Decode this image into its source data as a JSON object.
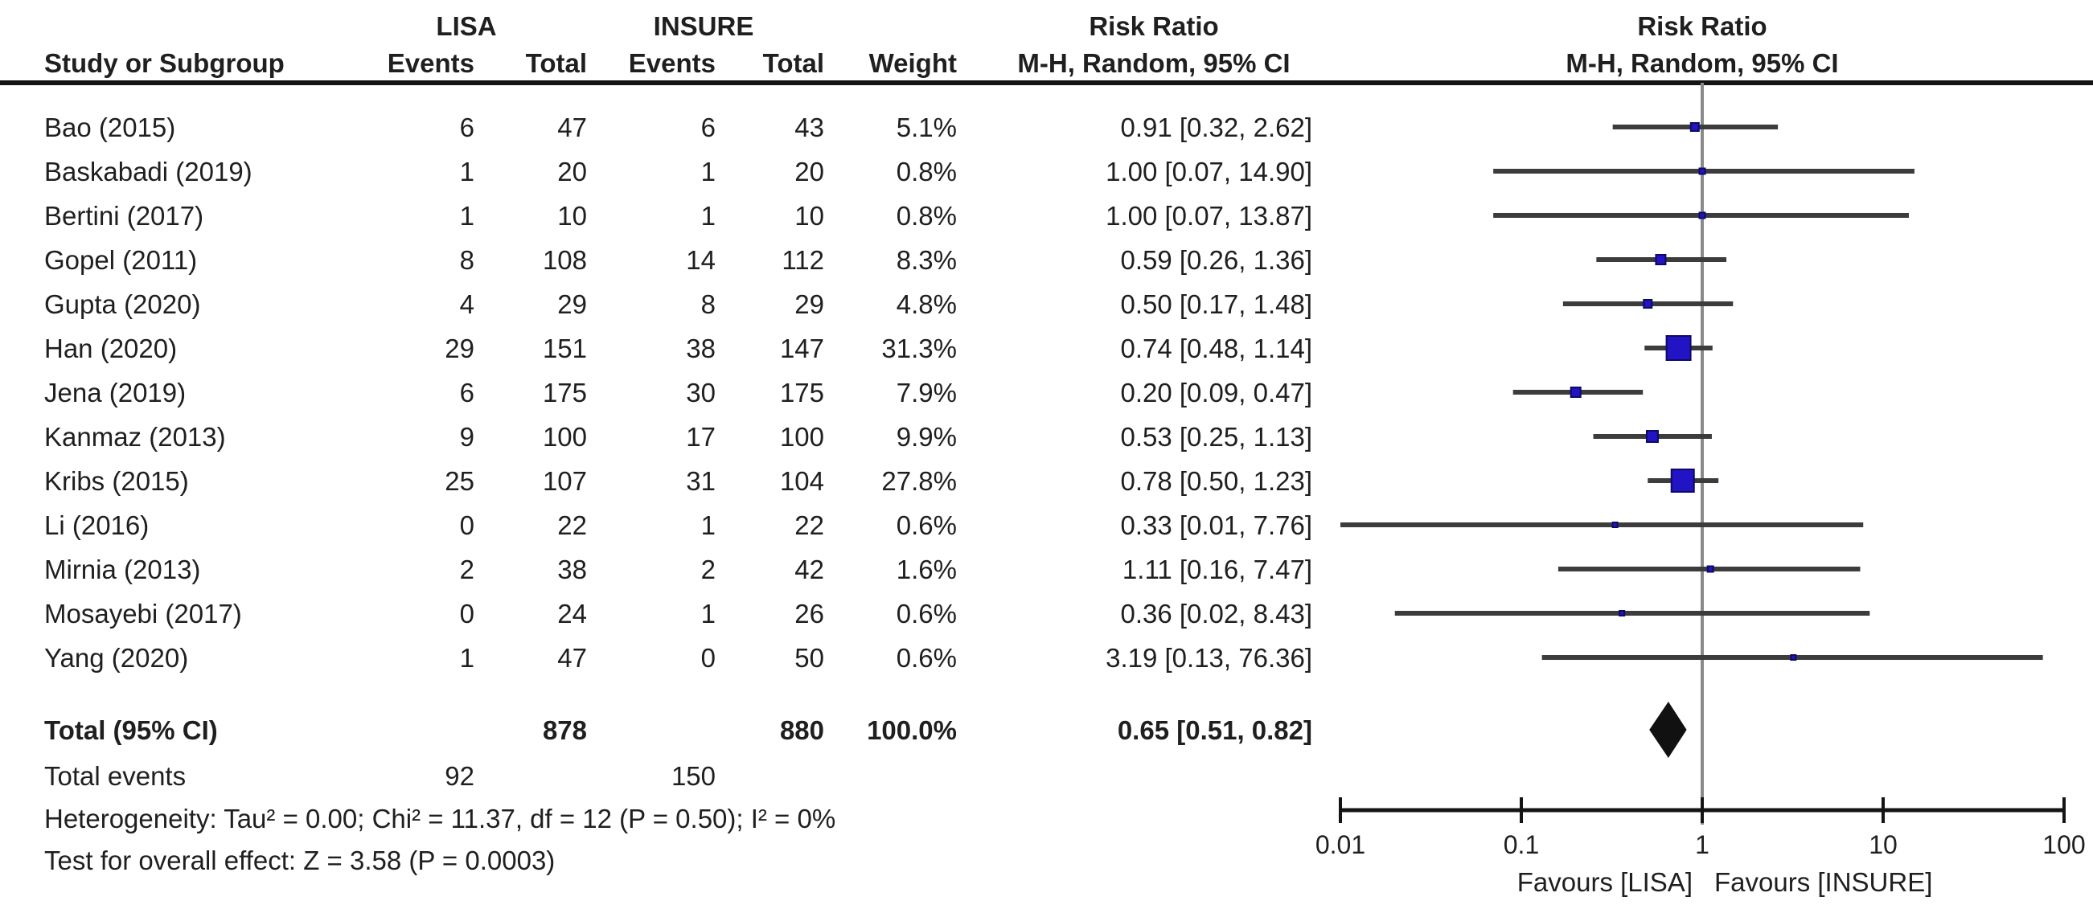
{
  "figure": {
    "type_label": "Forest plot",
    "colors": {
      "text": "#1f1f1f",
      "marker_fill": "#2213c4",
      "marker_stroke": "#0d0a66",
      "ci_line": "#3c3c3c",
      "ref_line": "#8a8a8a",
      "axis": "#141414",
      "diamond": "#111111"
    }
  },
  "table": {
    "headers": {
      "group1": "LISA",
      "group2": "INSURE",
      "risk_ratio": "Risk Ratio",
      "method": "M-H, Random, 95% CI",
      "study": "Study or Subgroup",
      "events": "Events",
      "total": "Total",
      "weight": "Weight"
    },
    "rows": [
      {
        "study": "Bao (2015)",
        "lisa_events": "6",
        "lisa_total": "47",
        "insure_events": "6",
        "insure_total": "43",
        "weight": "5.1%",
        "rr_ci": "0.91 [0.32, 2.62]"
      },
      {
        "study": "Baskabadi (2019)",
        "lisa_events": "1",
        "lisa_total": "20",
        "insure_events": "1",
        "insure_total": "20",
        "weight": "0.8%",
        "rr_ci": "1.00 [0.07, 14.90]"
      },
      {
        "study": "Bertini (2017)",
        "lisa_events": "1",
        "lisa_total": "10",
        "insure_events": "1",
        "insure_total": "10",
        "weight": "0.8%",
        "rr_ci": "1.00 [0.07, 13.87]"
      },
      {
        "study": "Gopel (2011)",
        "lisa_events": "8",
        "lisa_total": "108",
        "insure_events": "14",
        "insure_total": "112",
        "weight": "8.3%",
        "rr_ci": "0.59 [0.26, 1.36]"
      },
      {
        "study": "Gupta (2020)",
        "lisa_events": "4",
        "lisa_total": "29",
        "insure_events": "8",
        "insure_total": "29",
        "weight": "4.8%",
        "rr_ci": "0.50 [0.17, 1.48]"
      },
      {
        "study": "Han (2020)",
        "lisa_events": "29",
        "lisa_total": "151",
        "insure_events": "38",
        "insure_total": "147",
        "weight": "31.3%",
        "rr_ci": "0.74 [0.48, 1.14]"
      },
      {
        "study": "Jena (2019)",
        "lisa_events": "6",
        "lisa_total": "175",
        "insure_events": "30",
        "insure_total": "175",
        "weight": "7.9%",
        "rr_ci": "0.20 [0.09, 0.47]"
      },
      {
        "study": "Kanmaz (2013)",
        "lisa_events": "9",
        "lisa_total": "100",
        "insure_events": "17",
        "insure_total": "100",
        "weight": "9.9%",
        "rr_ci": "0.53 [0.25, 1.13]"
      },
      {
        "study": "Kribs (2015)",
        "lisa_events": "25",
        "lisa_total": "107",
        "insure_events": "31",
        "insure_total": "104",
        "weight": "27.8%",
        "rr_ci": "0.78 [0.50, 1.23]"
      },
      {
        "study": "Li (2016)",
        "lisa_events": "0",
        "lisa_total": "22",
        "insure_events": "1",
        "insure_total": "22",
        "weight": "0.6%",
        "rr_ci": "0.33 [0.01, 7.76]"
      },
      {
        "study": "Mirnia (2013)",
        "lisa_events": "2",
        "lisa_total": "38",
        "insure_events": "2",
        "insure_total": "42",
        "weight": "1.6%",
        "rr_ci": "1.11 [0.16, 7.47]"
      },
      {
        "study": "Mosayebi (2017)",
        "lisa_events": "0",
        "lisa_total": "24",
        "insure_events": "1",
        "insure_total": "26",
        "weight": "0.6%",
        "rr_ci": "0.36 [0.02, 8.43]"
      },
      {
        "study": "Yang (2020)",
        "lisa_events": "1",
        "lisa_total": "47",
        "insure_events": "0",
        "insure_total": "50",
        "weight": "0.6%",
        "rr_ci": "3.19 [0.13, 76.36]"
      }
    ],
    "total_row": {
      "label": "Total (95% CI)",
      "lisa_total": "878",
      "insure_total": "880",
      "weight": "100.0%",
      "rr_ci": "0.65 [0.51, 0.82]"
    },
    "total_events": {
      "label": "Total events",
      "lisa": "92",
      "insure": "150"
    },
    "heterogeneity": "Heterogeneity: Tau² = 0.00; Chi² = 11.37, df = 12 (P = 0.50); I² = 0%",
    "overall_effect": "Test for overall effect: Z = 3.58 (P = 0.0003)"
  },
  "chart_data": {
    "type": "scatter",
    "variant": "forest-plot",
    "title": "Risk Ratio",
    "subtitle": "M-H, Random, 95% CI",
    "x_scale": "log10",
    "x_range": [
      0.01,
      100
    ],
    "x_ticks": [
      0.01,
      0.1,
      1,
      10,
      100
    ],
    "x_tick_labels": [
      "0.01",
      "0.1",
      "1",
      "10",
      "100"
    ],
    "ref_line": 1,
    "favours_left": "Favours [LISA]",
    "favours_right": "Favours [INSURE]",
    "studies": [
      {
        "name": "Bao (2015)",
        "rr": 0.91,
        "ci_low": 0.32,
        "ci_high": 2.62,
        "weight_pct": 5.1
      },
      {
        "name": "Baskabadi (2019)",
        "rr": 1.0,
        "ci_low": 0.07,
        "ci_high": 14.9,
        "weight_pct": 0.8
      },
      {
        "name": "Bertini (2017)",
        "rr": 1.0,
        "ci_low": 0.07,
        "ci_high": 13.87,
        "weight_pct": 0.8
      },
      {
        "name": "Gopel (2011)",
        "rr": 0.59,
        "ci_low": 0.26,
        "ci_high": 1.36,
        "weight_pct": 8.3
      },
      {
        "name": "Gupta (2020)",
        "rr": 0.5,
        "ci_low": 0.17,
        "ci_high": 1.48,
        "weight_pct": 4.8
      },
      {
        "name": "Han (2020)",
        "rr": 0.74,
        "ci_low": 0.48,
        "ci_high": 1.14,
        "weight_pct": 31.3
      },
      {
        "name": "Jena (2019)",
        "rr": 0.2,
        "ci_low": 0.09,
        "ci_high": 0.47,
        "weight_pct": 7.9
      },
      {
        "name": "Kanmaz (2013)",
        "rr": 0.53,
        "ci_low": 0.25,
        "ci_high": 1.13,
        "weight_pct": 9.9
      },
      {
        "name": "Kribs (2015)",
        "rr": 0.78,
        "ci_low": 0.5,
        "ci_high": 1.23,
        "weight_pct": 27.8
      },
      {
        "name": "Li (2016)",
        "rr": 0.33,
        "ci_low": 0.01,
        "ci_high": 7.76,
        "weight_pct": 0.6
      },
      {
        "name": "Mirnia (2013)",
        "rr": 1.11,
        "ci_low": 0.16,
        "ci_high": 7.47,
        "weight_pct": 1.6
      },
      {
        "name": "Mosayebi (2017)",
        "rr": 0.36,
        "ci_low": 0.02,
        "ci_high": 8.43,
        "weight_pct": 0.6
      },
      {
        "name": "Yang (2020)",
        "rr": 3.19,
        "ci_low": 0.13,
        "ci_high": 76.36,
        "weight_pct": 0.6
      }
    ],
    "summary": {
      "label": "Total (95% CI)",
      "rr": 0.65,
      "ci_low": 0.51,
      "ci_high": 0.82
    }
  }
}
